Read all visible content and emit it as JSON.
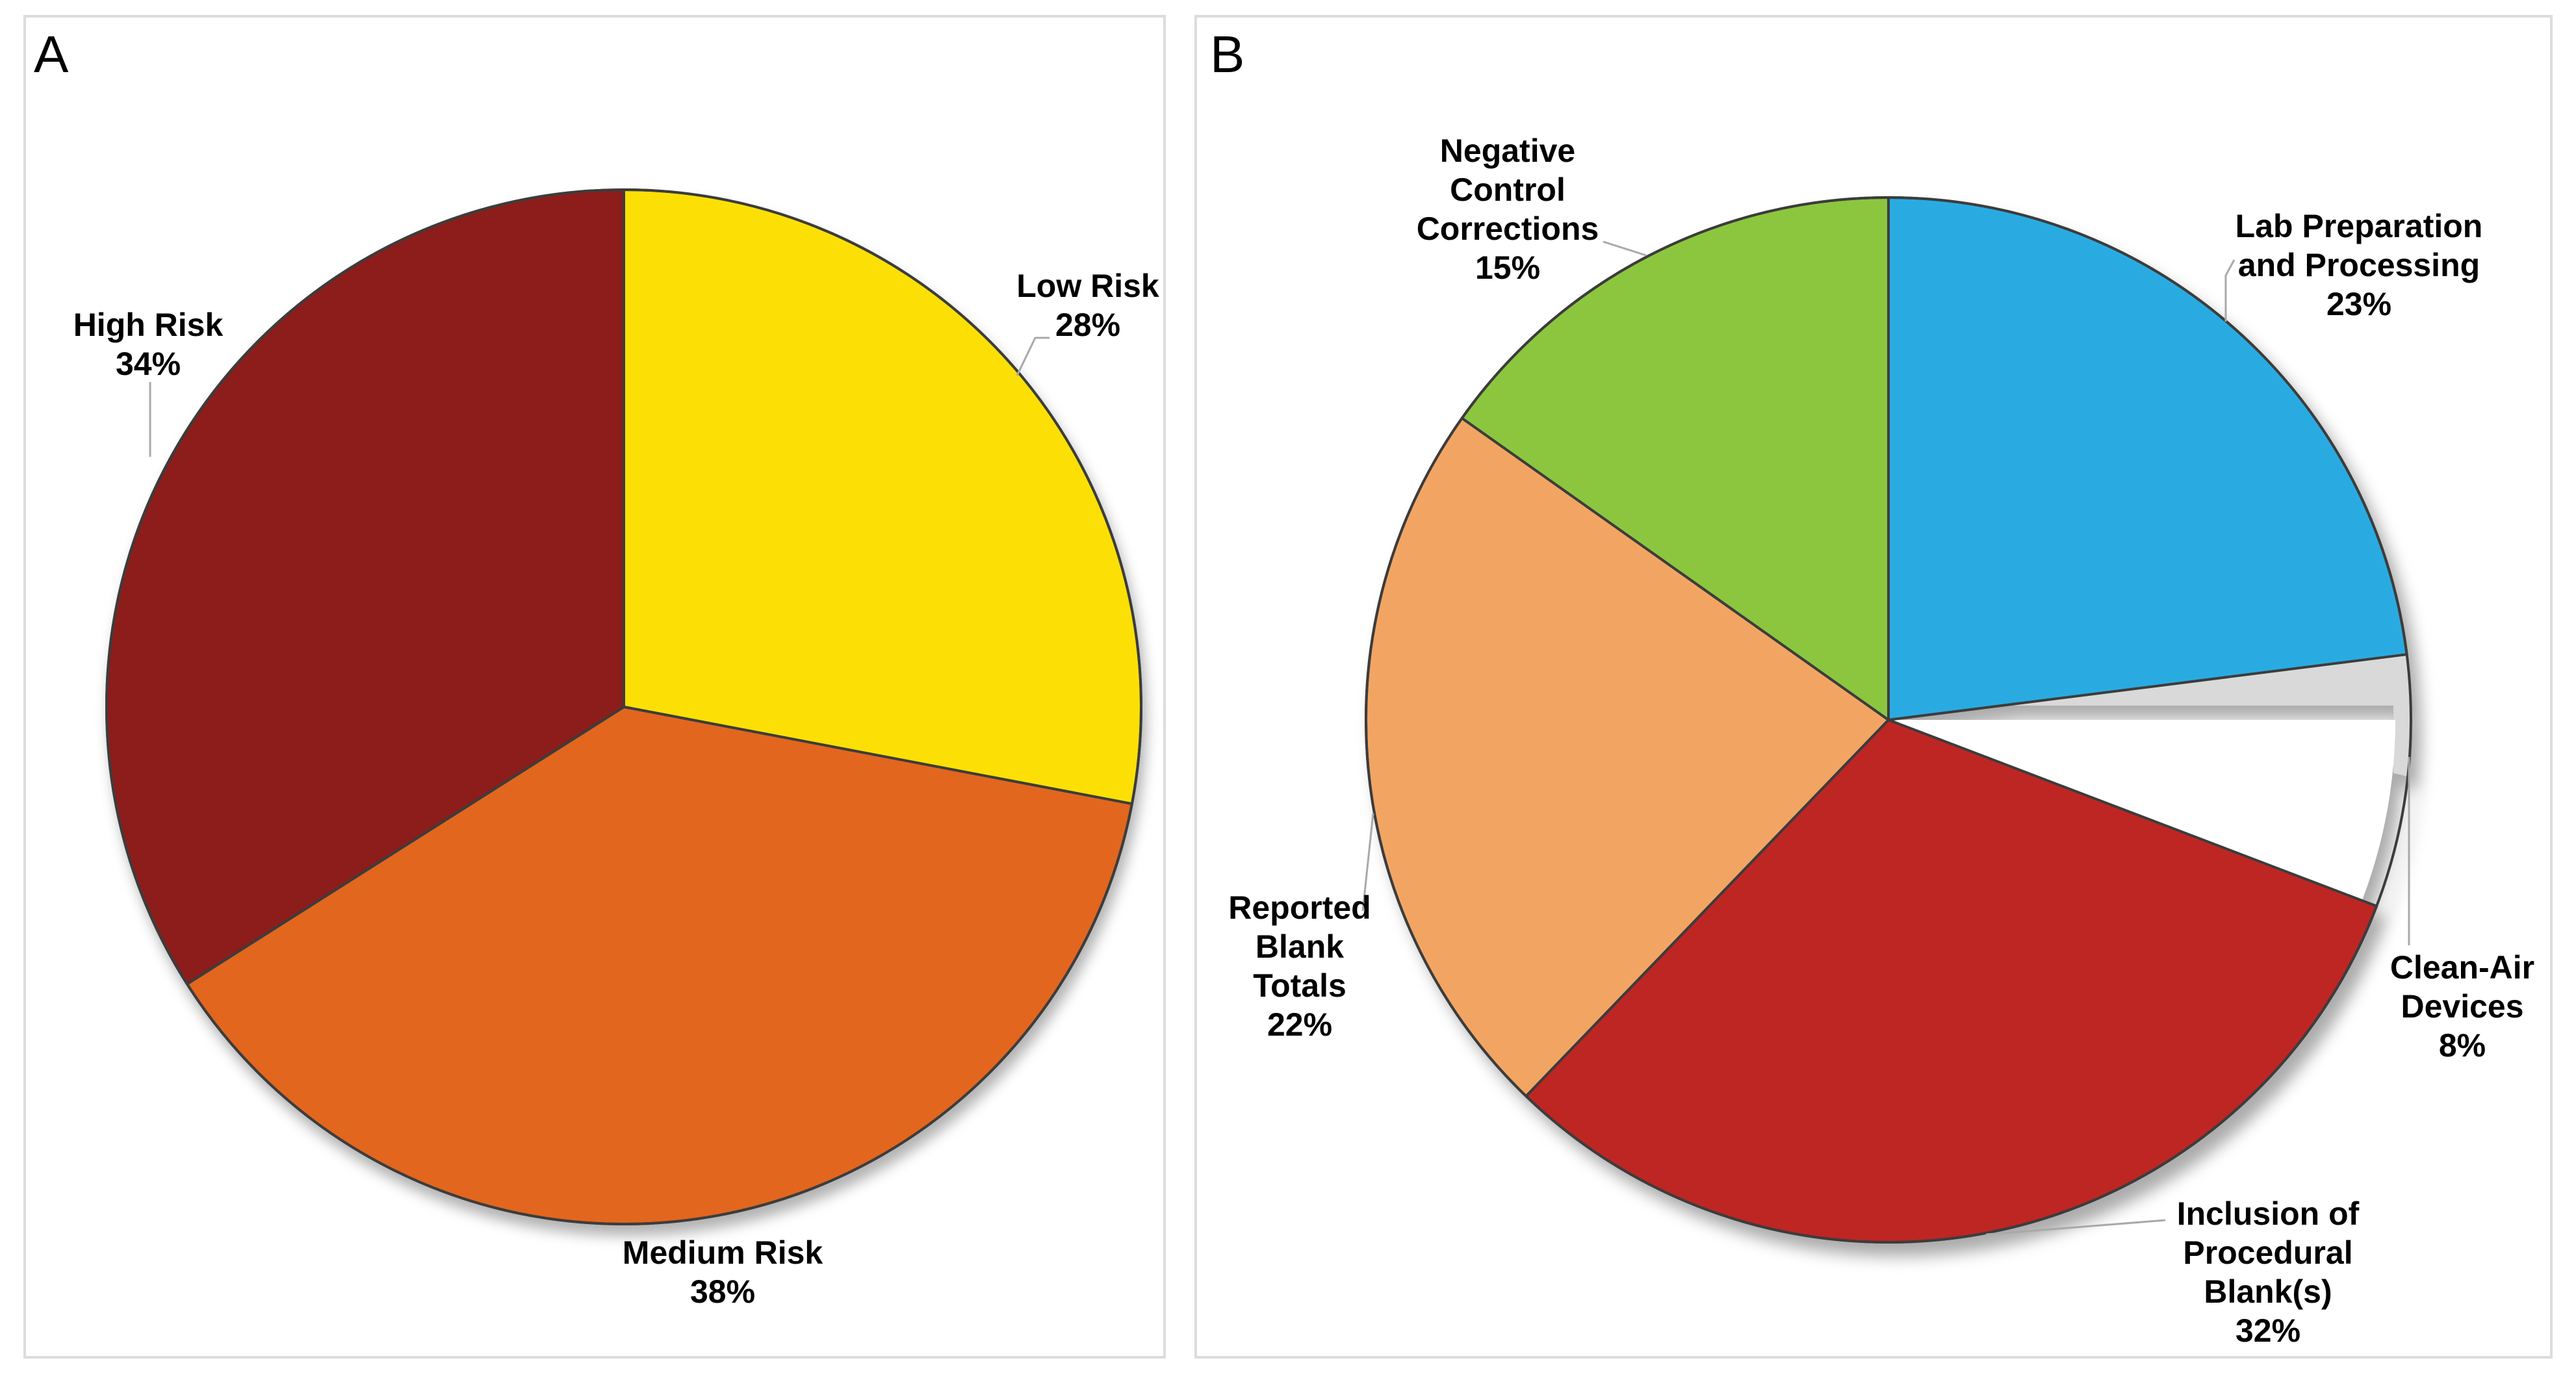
{
  "figure": {
    "panel_a_letter": "A",
    "panel_b_letter": "B"
  },
  "chart_data": [
    {
      "type": "pie",
      "panel": "A",
      "start_angle_deg": 0,
      "direction": "clockwise",
      "first_slice_at_top": true,
      "categories": [
        "Low Risk",
        "Medium Risk",
        "High Risk"
      ],
      "values": [
        28,
        38,
        34
      ],
      "slices": [
        {
          "label": "Low Risk",
          "pct": "28%",
          "value": 28,
          "color": "#FCE005"
        },
        {
          "label": "Medium Risk",
          "pct": "38%",
          "value": 38,
          "color": "#E2661E"
        },
        {
          "label": "High Risk",
          "pct": "34%",
          "value": 34,
          "color": "#8C1D1A"
        }
      ],
      "edge_stroke_color": "#3C3C3C",
      "leader_line_color": "#A9A9A9"
    },
    {
      "type": "pie",
      "panel": "B",
      "start_angle_deg": 0,
      "direction": "clockwise",
      "first_slice_at_top": true,
      "categories": [
        "Lab Preparation and Processing",
        "Clean-Air Devices",
        "Inclusion of Procedural Blank(s)",
        "Reported Blank Totals",
        "Negative Control Corrections"
      ],
      "values": [
        23,
        8,
        32,
        22,
        15
      ],
      "slices": [
        {
          "label": "Lab Preparation and Processing",
          "pct": "23%",
          "value": 23,
          "draw_value": 23,
          "color": "#29ABE2"
        },
        {
          "label": "",
          "pct": "",
          "value": 2,
          "draw_value": 2,
          "color": "#D9D9D9",
          "render": "shadow-sliver"
        },
        {
          "label": "Clean-Air Devices",
          "pct": "8%",
          "value": 8,
          "draw_value": 5.8,
          "color": "#FFFFFF",
          "render": "gap"
        },
        {
          "label": "Inclusion of Procedural Blank(s)",
          "pct": "32%",
          "value": 32,
          "draw_value": 31.4,
          "color": "#BE2623"
        },
        {
          "label": "Reported Blank Totals",
          "pct": "22%",
          "value": 22,
          "draw_value": 22.6,
          "color": "#F2A563"
        },
        {
          "label": "Negative Control Corrections",
          "pct": "15%",
          "value": 15,
          "draw_value": 15.2,
          "color": "#8CC63F"
        }
      ],
      "edge_stroke_color": "#3C3C3C",
      "leader_line_color": "#A9A9A9"
    }
  ],
  "labels": {
    "high_risk": {
      "lines": [
        "High Risk",
        "34%"
      ]
    },
    "low_risk": {
      "lines": [
        "Low Risk",
        "28%"
      ]
    },
    "medium_risk": {
      "lines": [
        "Medium Risk",
        "38%"
      ]
    },
    "negative": {
      "lines": [
        "Negative",
        "Control",
        "Corrections",
        "15%"
      ]
    },
    "lab_prep": {
      "lines": [
        "Lab Preparation",
        "and Processing",
        "23%"
      ]
    },
    "clean_air": {
      "lines": [
        "Clean-Air",
        "Devices",
        "8%"
      ]
    },
    "inclusion": {
      "lines": [
        "Inclusion of",
        "Procedural",
        "Blank(s)",
        "32%"
      ]
    },
    "reported": {
      "lines": [
        "Reported",
        "Blank",
        "Totals",
        "22%"
      ]
    }
  }
}
